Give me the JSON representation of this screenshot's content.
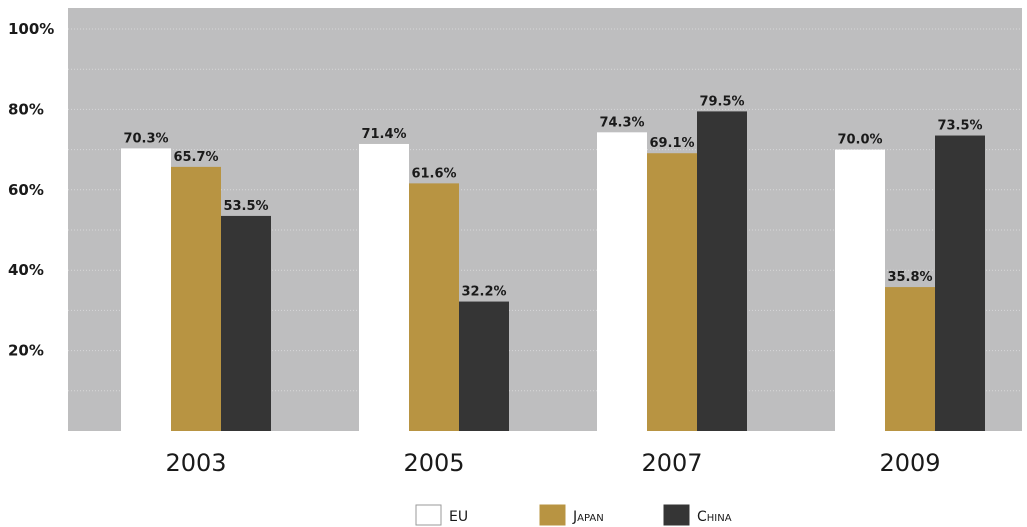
{
  "chart_data": {
    "type": "bar",
    "categories": [
      "2003",
      "2005",
      "2007",
      "2009"
    ],
    "series": [
      {
        "name": "EU",
        "values": [
          70.3,
          71.4,
          74.3,
          70.0
        ],
        "color": "#ffffff"
      },
      {
        "name": "Japan",
        "values": [
          65.7,
          61.6,
          69.1,
          35.8
        ],
        "color": "#b89442"
      },
      {
        "name": "China",
        "values": [
          53.5,
          32.2,
          79.5,
          73.5
        ],
        "color": "#353535"
      }
    ],
    "data_labels": [
      [
        "70.3%",
        "71.4%",
        "74.3%",
        "70.0%"
      ],
      [
        "65.7%",
        "61.6%",
        "69.1%",
        "35.8%"
      ],
      [
        "53.5%",
        "32.2%",
        "79.5%",
        "73.5%"
      ]
    ],
    "yticks": [
      20,
      40,
      60,
      80,
      100
    ],
    "ytick_labels": [
      "20%",
      "40%",
      "60%",
      "80%",
      "100%"
    ],
    "ylim": [
      0,
      100
    ],
    "grid": true,
    "legend_position": "bottom-center",
    "background_color": "#bebebf"
  }
}
